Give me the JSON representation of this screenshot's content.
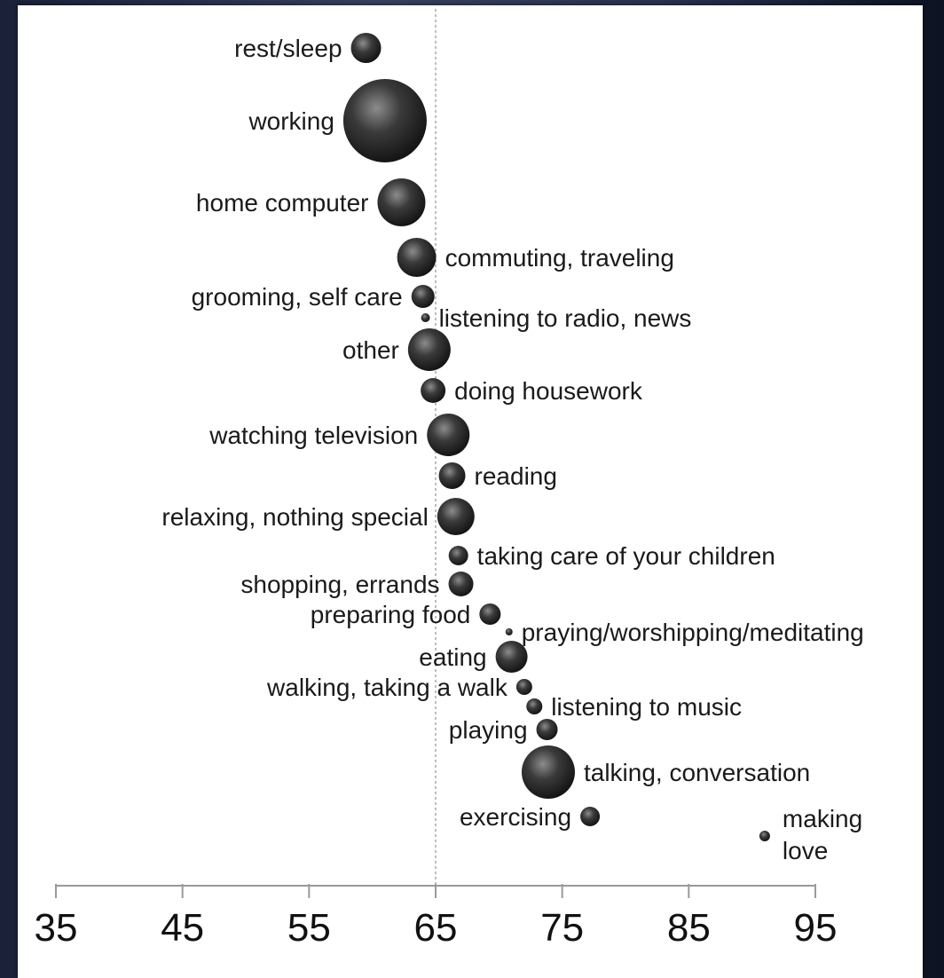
{
  "colors": {
    "bubble": "#2b2b2b",
    "highlight": "#9a9a9a",
    "axis": "#9a9a9a",
    "refline": "#a8a8a8"
  },
  "chart_data": {
    "type": "scatter",
    "xlim": [
      35,
      95
    ],
    "xticks": [
      35,
      45,
      55,
      65,
      75,
      85,
      95
    ],
    "reference_line_x": 65,
    "grid": false,
    "points": [
      {
        "label": "rest/sleep",
        "x": 59.5,
        "size": 17,
        "side": "left"
      },
      {
        "label": "working",
        "x": 61,
        "size": 47,
        "side": "left"
      },
      {
        "label": "home computer",
        "x": 62.3,
        "size": 27,
        "side": "left"
      },
      {
        "label": "commuting, traveling",
        "x": 63.5,
        "size": 22,
        "side": "right"
      },
      {
        "label": "grooming, self care",
        "x": 64,
        "size": 13,
        "side": "left"
      },
      {
        "label": "listening to radio, news",
        "x": 64.2,
        "size": 5,
        "side": "right"
      },
      {
        "label": "other",
        "x": 64.5,
        "size": 24,
        "side": "left"
      },
      {
        "label": "doing housework",
        "x": 64.8,
        "size": 14,
        "side": "right"
      },
      {
        "label": "watching television",
        "x": 66,
        "size": 24,
        "side": "left"
      },
      {
        "label": "reading",
        "x": 66.3,
        "size": 15,
        "side": "right"
      },
      {
        "label": "relaxing, nothing special",
        "x": 66.6,
        "size": 21,
        "side": "left"
      },
      {
        "label": "taking care of your children",
        "x": 66.8,
        "size": 11,
        "side": "right"
      },
      {
        "label": "shopping, errands",
        "x": 67,
        "size": 14,
        "side": "left"
      },
      {
        "label": "preparing food",
        "x": 69.3,
        "size": 12,
        "side": "left"
      },
      {
        "label": "praying/worshipping/meditating",
        "x": 70.8,
        "size": 4,
        "side": "right"
      },
      {
        "label": "eating",
        "x": 71,
        "size": 18,
        "side": "left"
      },
      {
        "label": "walking, taking a walk",
        "x": 72,
        "size": 9,
        "side": "left"
      },
      {
        "label": "listening to music",
        "x": 72.8,
        "size": 9,
        "side": "right"
      },
      {
        "label": "playing",
        "x": 73.8,
        "size": 12,
        "side": "left"
      },
      {
        "label": "talking, conversation",
        "x": 73.9,
        "size": 30,
        "side": "right"
      },
      {
        "label": "exercising",
        "x": 77.2,
        "size": 11,
        "side": "left"
      },
      {
        "label": "making love",
        "x": 91,
        "size": 6,
        "side": "right"
      }
    ]
  }
}
